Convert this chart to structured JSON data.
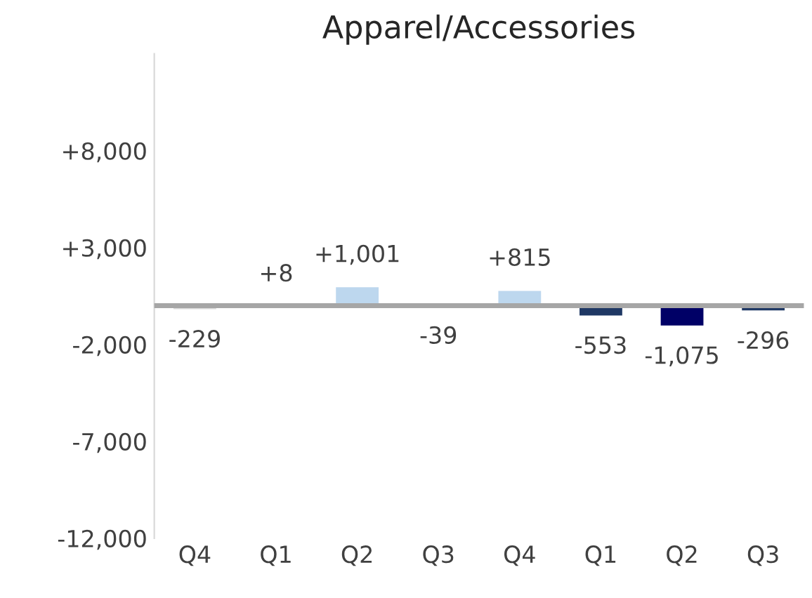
{
  "chart_data": {
    "type": "bar",
    "title": "Apparel/Accessories",
    "categories": [
      "Q4",
      "Q1",
      "Q2",
      "Q3",
      "Q4",
      "Q1",
      "Q2",
      "Q3"
    ],
    "values": [
      -229,
      8,
      1001,
      -39,
      815,
      -553,
      -1075,
      -296
    ],
    "colors": [
      "#d9d9d9",
      "#d9d9d9",
      "#bdd7ee",
      "#d9d9d9",
      "#bdd7ee",
      "#1f3864",
      "#000066",
      "#1f3864"
    ],
    "value_labels": [
      "-229",
      "+8",
      "+1,001",
      "-39",
      "+815",
      "-553",
      "-1,075",
      "-296"
    ],
    "ylim": [
      -12000,
      13000
    ],
    "yticks": [
      {
        "value": -12000,
        "label": "-12,000"
      },
      {
        "value": -7000,
        "label": "-7,000"
      },
      {
        "value": -2000,
        "label": "-2,000"
      },
      {
        "value": 3000,
        "label": "+3,000"
      },
      {
        "value": 8000,
        "label": "+8,000"
      }
    ],
    "ref_lines": [
      {
        "axis": "y",
        "value": 0,
        "label": null,
        "color": "#a6a6a6"
      }
    ],
    "grid": false
  }
}
